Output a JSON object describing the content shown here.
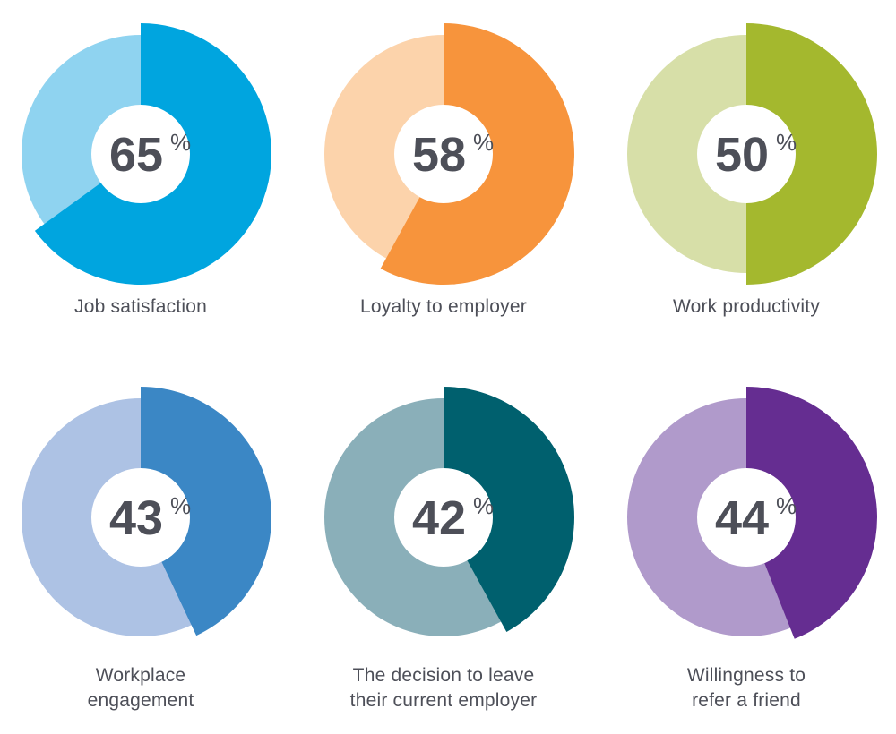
{
  "chart_data": {
    "type": "pie",
    "title": "",
    "charts": [
      {
        "label_lines": [
          "Job satisfaction"
        ],
        "value": 65,
        "value_text": "65",
        "unit": "%",
        "color": "#00a5df",
        "bg_color": "#8fd3f0"
      },
      {
        "label_lines": [
          "Loyalty to employer"
        ],
        "value": 58,
        "value_text": "58",
        "unit": "%",
        "color": "#f7943c",
        "bg_color": "#fcd3ab"
      },
      {
        "label_lines": [
          "Work productivity"
        ],
        "value": 50,
        "value_text": "50",
        "unit": "%",
        "color": "#a4b82e",
        "bg_color": "#d7dfa8"
      },
      {
        "label_lines": [
          "Workplace",
          "engagement"
        ],
        "value": 43,
        "value_text": "43",
        "unit": "%",
        "color": "#3b87c5",
        "bg_color": "#adc2e4"
      },
      {
        "label_lines": [
          "The decision to leave",
          "their current employer"
        ],
        "value": 42,
        "value_text": "42",
        "unit": "%",
        "color": "#00606e",
        "bg_color": "#8aafb9"
      },
      {
        "label_lines": [
          "Willingness to",
          "refer a friend"
        ],
        "value": 44,
        "value_text": "44",
        "unit": "%",
        "color": "#652d91",
        "bg_color": "#b09acb"
      }
    ],
    "text_color": "#4d4f58"
  }
}
